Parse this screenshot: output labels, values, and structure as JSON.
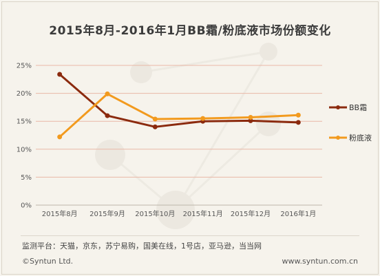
{
  "chart_data": {
    "type": "line",
    "title": "2015年8月-2016年1月BB霜/粉底液市场份额变化",
    "categories": [
      "2015年8月",
      "2015年9月",
      "2015年10月",
      "2015年11月",
      "2015年12月",
      "2016年1月"
    ],
    "y_ticks": [
      "0%",
      "5%",
      "10%",
      "15%",
      "20%",
      "25%"
    ],
    "ylim": [
      0,
      25
    ],
    "grid": true,
    "legend_position": "right",
    "series": [
      {
        "name": "BB霜",
        "color": "#8b2a0e",
        "values": [
          23.4,
          16.0,
          14.0,
          15.0,
          15.1,
          14.8
        ]
      },
      {
        "name": "粉底液",
        "color": "#f29a1e",
        "values": [
          12.2,
          19.9,
          15.4,
          15.5,
          15.7,
          16.1
        ]
      }
    ]
  },
  "source_text": "监测平台：天猫，京东，苏宁易购，国美在线，1号店，亚马逊，当当网",
  "footer": {
    "copyright": "©Syntun Ltd.",
    "website": "www.syntun.com.cn"
  },
  "gridline_color": "#e9b7a6"
}
